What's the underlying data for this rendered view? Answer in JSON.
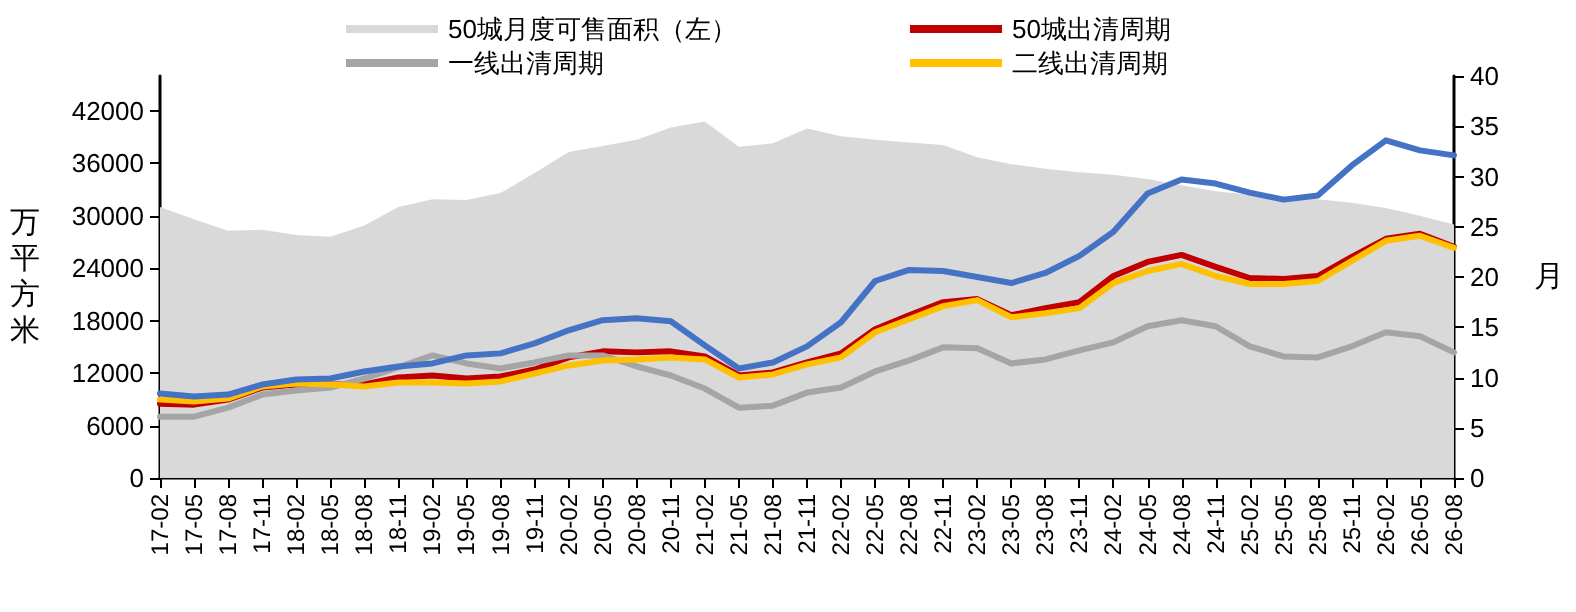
{
  "chart_data": {
    "type": "line",
    "ylabel": "万平方米",
    "y2label": "月",
    "categories": [
      "17-02",
      "17-05",
      "17-08",
      "17-11",
      "18-02",
      "18-05",
      "18-08",
      "18-11",
      "19-02",
      "19-05",
      "19-08",
      "19-11",
      "20-02",
      "20-05",
      "20-08",
      "20-11",
      "21-02",
      "21-05",
      "21-08",
      "21-11",
      "22-02",
      "22-05",
      "22-08",
      "22-11",
      "23-02",
      "23-05",
      "23-08",
      "23-11",
      "24-02",
      "24-05",
      "24-08",
      "24-11",
      "25-02",
      "25-05",
      "25-08",
      "25-11",
      "26-02",
      "26-05",
      "26-08"
    ],
    "series": [
      {
        "name": "50城月度可售面积（左）",
        "type": "area",
        "color": "#d9d9d9",
        "values": [
          31000,
          29600,
          28300,
          28400,
          27800,
          27600,
          28900,
          31000,
          31900,
          31800,
          32600,
          34900,
          37300,
          38000,
          38700,
          40100,
          40800,
          37900,
          38300,
          40000,
          39100,
          38700,
          38400,
          38100,
          36700,
          35900,
          35400,
          35000,
          34700,
          34200,
          33500,
          32800,
          32400,
          32200,
          31900,
          31500,
          30900,
          30000,
          29000
        ]
      },
      {
        "name": "50城出清周期",
        "color": "#c00000",
        "axis": "y2",
        "values": [
          7.4,
          7.3,
          7.8,
          9.0,
          9.3,
          9.3,
          9.3,
          10.0,
          10.2,
          9.9,
          10.1,
          10.8,
          12.0,
          12.6,
          12.5,
          12.6,
          12.1,
          10.2,
          10.5,
          11.5,
          12.4,
          14.8,
          16.2,
          17.5,
          17.8,
          16.2,
          16.9,
          17.5,
          20.1,
          21.5,
          22.2,
          21.0,
          19.9,
          19.8,
          20.1,
          22.0,
          23.8,
          24.3,
          23.0
        ]
      },
      {
        "name": "一线出清周期",
        "color": "#a5a5a5",
        "axis": "y2",
        "values": [
          6.1,
          6.1,
          7.0,
          8.3,
          8.7,
          9.0,
          9.9,
          11.0,
          12.2,
          11.4,
          10.9,
          11.5,
          12.2,
          12.2,
          11.1,
          10.2,
          8.9,
          7.0,
          7.2,
          8.5,
          9.0,
          10.6,
          11.7,
          13.0,
          12.9,
          11.4,
          11.8,
          12.7,
          13.5,
          15.1,
          15.7,
          15.1,
          13.1,
          12.1,
          12.0,
          13.1,
          14.5,
          14.1,
          12.5
        ]
      },
      {
        "name": "二线出清周期",
        "color": "#ffc000",
        "axis": "y2",
        "values": [
          7.8,
          7.6,
          7.9,
          9.1,
          9.4,
          9.3,
          9.1,
          9.5,
          9.5,
          9.4,
          9.6,
          10.4,
          11.2,
          11.7,
          11.8,
          12.0,
          11.8,
          10.0,
          10.3,
          11.3,
          12.0,
          14.5,
          15.8,
          17.1,
          17.7,
          16.0,
          16.4,
          16.9,
          19.4,
          20.6,
          21.3,
          20.1,
          19.3,
          19.3,
          19.6,
          21.6,
          23.6,
          24.1,
          22.9
        ]
      },
      {
        "color": "#4472c4",
        "axis": "y2",
        "values": [
          8.4,
          8.1,
          8.3,
          9.3,
          9.8,
          9.9,
          10.6,
          11.1,
          11.4,
          12.2,
          12.4,
          13.4,
          14.7,
          15.7,
          15.9,
          15.6,
          13.2,
          10.9,
          11.5,
          13.1,
          15.5,
          19.6,
          20.7,
          20.6,
          20.0,
          19.4,
          20.4,
          22.1,
          24.5,
          28.3,
          29.7,
          29.3,
          28.4,
          27.7,
          28.1,
          31.1,
          33.6,
          32.6,
          32.1
        ]
      }
    ],
    "ylim": [
      0,
      46000
    ],
    "yticks": [
      0,
      6000,
      12000,
      18000,
      24000,
      30000,
      36000,
      42000
    ],
    "y2lim": [
      0,
      40
    ],
    "y2ticks": [
      0,
      5,
      10,
      15,
      20,
      25,
      30,
      35,
      40
    ],
    "grid": false,
    "legend": "top",
    "marker": "none",
    "line_style": "solid"
  }
}
